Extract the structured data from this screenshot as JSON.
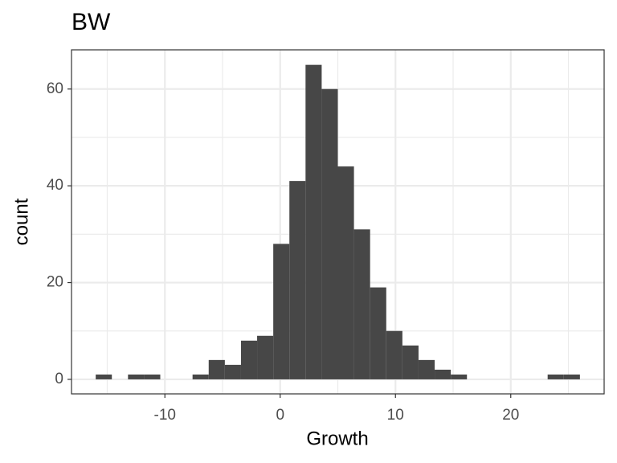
{
  "chart_data": {
    "type": "histogram",
    "title": "BW",
    "x_label": "Growth",
    "y_label": "count",
    "bins": [
      -16,
      -14.6,
      -13.2,
      -11.8,
      -10.4,
      -9,
      -7.6,
      -6.2,
      -4.8,
      -3.4,
      -2,
      -0.6,
      0.8,
      2.2,
      3.6,
      5,
      6.4,
      7.8,
      9.2,
      10.6,
      12,
      13.4,
      14.8,
      16.2,
      17.6,
      19,
      20.4,
      21.8,
      23.2,
      24.6,
      26
    ],
    "values": [
      1,
      0,
      1,
      1,
      0,
      0,
      1,
      4,
      3,
      8,
      9,
      28,
      41,
      65,
      60,
      44,
      31,
      19,
      10,
      7,
      4,
      2,
      1,
      0,
      0,
      0,
      0,
      0,
      1,
      1
    ],
    "color": "#474747",
    "xlim": [
      -18.1,
      28.1
    ],
    "xticks": [
      -10,
      0,
      10,
      20
    ],
    "x_minor_ticks": [
      -15,
      -5,
      5,
      15,
      25
    ],
    "ylim": [
      -3.0,
      68.1
    ],
    "yticks": [
      0,
      20,
      40,
      60
    ],
    "y_minor_ticks": [
      10,
      30,
      50
    ],
    "grid": true
  }
}
